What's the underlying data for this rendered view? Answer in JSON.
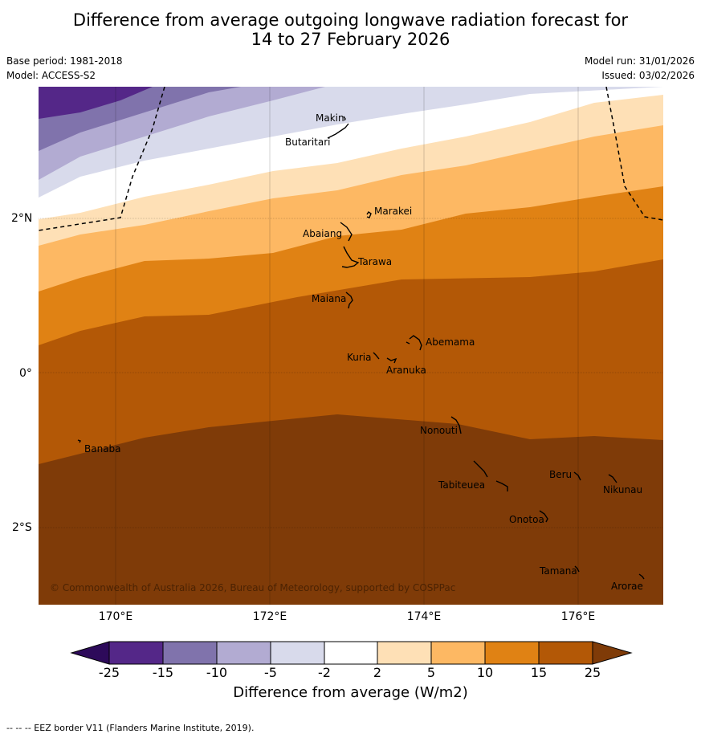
{
  "title": {
    "line1": "Difference from average outgoing longwave radiation forecast for",
    "line2": "14 to 27 February 2026"
  },
  "meta": {
    "base_period": "Base period: 1981-2018",
    "model": "Model: ACCESS-S2",
    "model_run": "Model run: 31/01/2026",
    "issued": "Issued: 03/02/2026"
  },
  "map": {
    "lon_labels": [
      "170°E",
      "172°E",
      "174°E",
      "176°E"
    ],
    "lat_labels": [
      "2°N",
      "0°",
      "2°S"
    ],
    "places": [
      {
        "name": "Makin"
      },
      {
        "name": "Butaritari"
      },
      {
        "name": "Marakei"
      },
      {
        "name": "Abaiang"
      },
      {
        "name": "Tarawa"
      },
      {
        "name": "Maiana"
      },
      {
        "name": "Abemama"
      },
      {
        "name": "Kuria"
      },
      {
        "name": "Aranuka"
      },
      {
        "name": "Nonouti"
      },
      {
        "name": "Banaba"
      },
      {
        "name": "Beru"
      },
      {
        "name": "Tabiteuea"
      },
      {
        "name": "Nikunau"
      },
      {
        "name": "Onotoa"
      },
      {
        "name": "Tamana"
      },
      {
        "name": "Arorae"
      }
    ],
    "copyright": "© Commonwealth of Australia 2026, Bureau of Meteorology, supported by COSPPac"
  },
  "colorbar": {
    "label": "Difference from average (W/m2)",
    "ticks": [
      "-25",
      "-15",
      "-10",
      "-5",
      "-2",
      "2",
      "5",
      "10",
      "15",
      "25"
    ],
    "colors": [
      "#2d0a5a",
      "#542788",
      "#8073ac",
      "#b2abd2",
      "#d8daeb",
      "#ffffff",
      "#fee0b6",
      "#fdb863",
      "#e08214",
      "#b35806",
      "#7f3b08"
    ]
  },
  "footer": "--  --  -- EEZ border V11 (Flanders Marine Institute, 2019)."
}
